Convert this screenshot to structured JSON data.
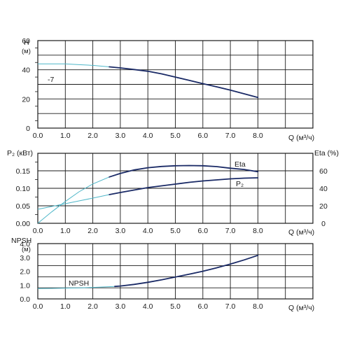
{
  "colors": {
    "operating": "#1a2a66",
    "extrapolated": "#4fb7c9",
    "grid": "#1a1a1a",
    "text": "#1a1a1a"
  },
  "chart_data": [
    {
      "id": "head",
      "type": "line",
      "ylabel": "H",
      "yunit": "(м)",
      "xlabel": "Q (м³/ч)",
      "xlim": [
        0,
        8
      ],
      "ylim": [
        0,
        60
      ],
      "xticks": [
        "0.0",
        "1.0",
        "2.0",
        "3.0",
        "4.0",
        "5.0",
        "6.0",
        "7.0",
        "8.0"
      ],
      "yticks": [
        "0",
        "20",
        "40",
        "60"
      ],
      "grid": true,
      "series": [
        {
          "name": "-7",
          "style": "operating",
          "operating_start": 2.6,
          "x": [
            0,
            0.5,
            1.0,
            1.5,
            2.0,
            2.6,
            3.0,
            3.5,
            4.0,
            4.5,
            5.0,
            5.5,
            6.0,
            6.5,
            7.0,
            7.5,
            8.0
          ],
          "y": [
            44,
            44,
            44,
            43.5,
            43,
            42,
            41.3,
            40.2,
            39,
            37.2,
            35,
            32.8,
            30.5,
            28.3,
            26,
            23.5,
            21
          ]
        }
      ]
    },
    {
      "id": "power_efficiency",
      "type": "line",
      "ylabel": "P₂ (кВт)",
      "ylabel_right": "Eta (%)",
      "xlabel": "Q (м³/ч)",
      "xlim": [
        0,
        8
      ],
      "ylim": [
        0,
        0.2
      ],
      "ylim_right": [
        0,
        80
      ],
      "xticks": [
        "0.0",
        "1.0",
        "2.0",
        "3.0",
        "4.0",
        "5.0",
        "6.0",
        "7.0",
        "8.0"
      ],
      "yticks": [
        "0.00",
        "0.05",
        "0.10",
        "0.15"
      ],
      "yticks_right": [
        "0",
        "20",
        "40",
        "60"
      ],
      "grid": true,
      "series": [
        {
          "name": "Eta",
          "axis": "right",
          "operating_start": 2.6,
          "x": [
            0,
            0.5,
            1.0,
            1.5,
            2.0,
            2.6,
            3.0,
            3.5,
            4.0,
            4.5,
            5.0,
            5.5,
            6.0,
            6.5,
            7.0,
            7.5,
            8.0
          ],
          "y": [
            0,
            13,
            25,
            36,
            45,
            53,
            57,
            61,
            63.5,
            65,
            65.8,
            66,
            65.8,
            64.8,
            63,
            61.5,
            59
          ]
        },
        {
          "name": "P₂",
          "axis": "left",
          "operating_start": 2.6,
          "x": [
            0,
            0.5,
            1.0,
            1.5,
            2.0,
            2.6,
            3.0,
            3.5,
            4.0,
            4.5,
            5.0,
            5.5,
            6.0,
            6.5,
            7.0,
            7.5,
            8.0
          ],
          "y": [
            0.04,
            0.048,
            0.056,
            0.064,
            0.072,
            0.082,
            0.088,
            0.095,
            0.102,
            0.107,
            0.112,
            0.117,
            0.121,
            0.124,
            0.127,
            0.129,
            0.13
          ]
        }
      ]
    },
    {
      "id": "npsh",
      "type": "line",
      "ylabel": "NPSH",
      "yunit": "(м)",
      "xlabel": "Q (м³/ч)",
      "xlim": [
        0,
        8
      ],
      "ylim": [
        0,
        4
      ],
      "xticks": [
        "0.0",
        "1.0",
        "2.0",
        "3.0",
        "4.0",
        "5.0",
        "6.0",
        "7.0",
        "8.0"
      ],
      "yticks": [
        "0.0",
        "1.0",
        "2.0",
        "3.0",
        "4.0"
      ],
      "grid": true,
      "series": [
        {
          "name": "NPSH",
          "operating_start": 2.8,
          "x": [
            0,
            0.5,
            1.0,
            1.5,
            2.0,
            2.5,
            2.8,
            3.0,
            3.5,
            4.0,
            4.5,
            5.0,
            5.5,
            6.0,
            6.5,
            7.0,
            7.5,
            8.0
          ],
          "y": [
            0.75,
            0.76,
            0.78,
            0.8,
            0.83,
            0.87,
            0.9,
            0.93,
            1.05,
            1.2,
            1.38,
            1.58,
            1.78,
            2.0,
            2.25,
            2.52,
            2.82,
            3.15
          ]
        }
      ]
    }
  ]
}
